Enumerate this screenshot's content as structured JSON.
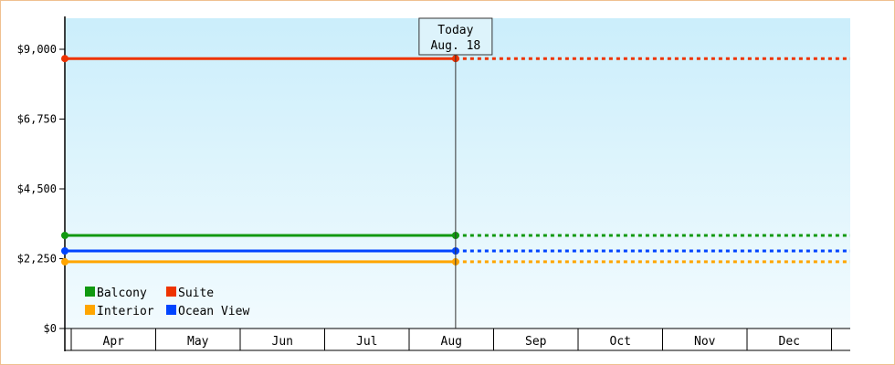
{
  "chart_data": {
    "type": "line",
    "title": "",
    "xlabel": "",
    "ylabel": "",
    "ylim": [
      0,
      10000
    ],
    "yticks": [
      0,
      2250,
      4500,
      6750,
      9000
    ],
    "ytick_labels": [
      "$0",
      "$2,250",
      "$4,500",
      "$6,750",
      "$9,000"
    ],
    "categories": [
      "Apr",
      "May",
      "Jun",
      "Jul",
      "Aug",
      "Sep",
      "Oct",
      "Nov",
      "Dec"
    ],
    "today": {
      "label_line1": "Today",
      "label_line2": "Aug. 18",
      "month_index": 4.55
    },
    "series": [
      {
        "name": "Balcony",
        "color": "#119911",
        "value": 3000
      },
      {
        "name": "Suite",
        "color": "#ee3300",
        "value": 8700
      },
      {
        "name": "Interior",
        "color": "#ffa500",
        "value": 2150
      },
      {
        "name": "Ocean View",
        "color": "#0044ff",
        "value": 2500
      }
    ],
    "grid": false,
    "legend_position": "bottom-left"
  }
}
